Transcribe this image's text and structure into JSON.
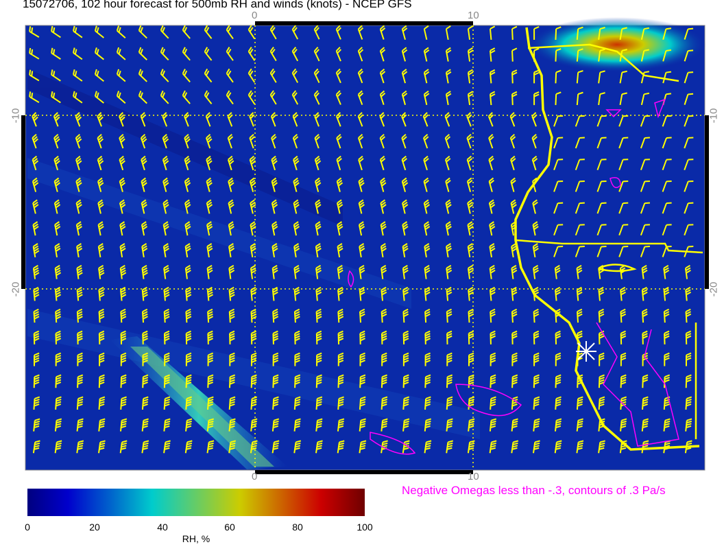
{
  "title": "15072706, 102 hour forecast for 500mb RH and winds (knots) - NCEP GFS",
  "axes": {
    "x_ticks": [
      "0",
      "10"
    ],
    "y_ticks": [
      "-10",
      "-20"
    ]
  },
  "colorbar": {
    "label": "RH, %",
    "ticks": [
      "0",
      "20",
      "40",
      "60",
      "80",
      "100"
    ],
    "colors": [
      "#00007f",
      "#0000cc",
      "#00cccc",
      "#cccc00",
      "#cc0000",
      "#6f0000"
    ]
  },
  "omega_note": "Negative Omegas less than -.3, contours of .3 Pa/s",
  "colors": {
    "wind_barbs": "#ffff00",
    "coastline": "#ffff00",
    "omega_contours": "#ff00ff",
    "background_rh": "#0a2aa8"
  }
}
